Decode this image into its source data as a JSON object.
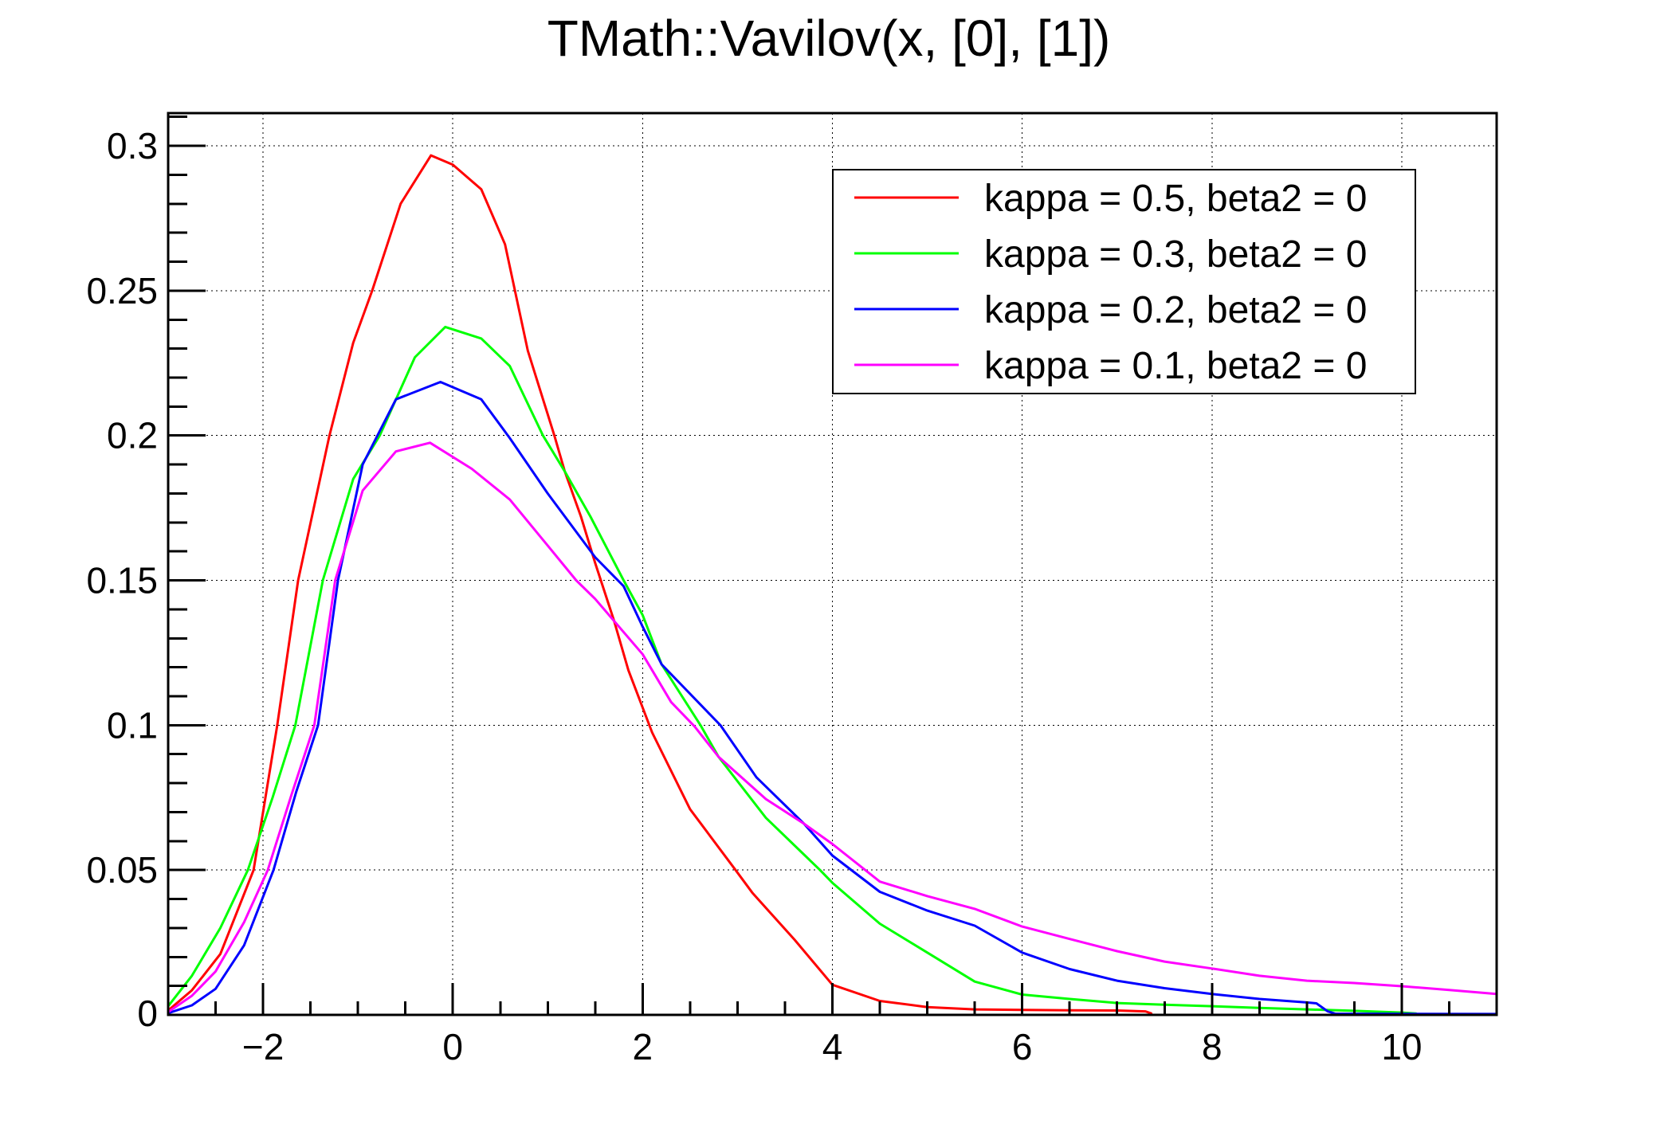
{
  "chart_data": {
    "type": "line",
    "title": "TMath::Vavilov(x, [0], [1])",
    "xlabel": "",
    "ylabel": "",
    "x_axis": {
      "min": -3,
      "max": 11,
      "major_ticks": [
        -2,
        0,
        2,
        4,
        6,
        8,
        10
      ],
      "tick_labels": [
        "−2",
        "0",
        "2",
        "4",
        "6",
        "8",
        "10"
      ],
      "minor_step": 0.5
    },
    "y_axis": {
      "min": 0,
      "max": 0.3113,
      "major_ticks": [
        0,
        0.05,
        0.1,
        0.15,
        0.2,
        0.25,
        0.3
      ],
      "tick_labels": [
        "0",
        "0.05",
        "0.1",
        "0.15",
        "0.2",
        "0.25",
        "0.3"
      ],
      "minor_step": 0.01
    },
    "grid": true,
    "legend": {
      "position": "top-right",
      "entries": [
        {
          "label": "kappa = 0.5, beta2 = 0",
          "color": "#ff0000"
        },
        {
          "label": "kappa = 0.3, beta2 = 0",
          "color": "#00ff00"
        },
        {
          "label": "kappa = 0.2, beta2 = 0",
          "color": "#0000ff"
        },
        {
          "label": "kappa = 0.1, beta2 = 0",
          "color": "#ff00ff"
        }
      ]
    },
    "series": [
      {
        "name": "kappa = 0.5, beta2 = 0",
        "color": "#ff0000",
        "points": [
          [
            -3,
            0.0015
          ],
          [
            -2.75,
            0.0085
          ],
          [
            -2.45,
            0.021
          ],
          [
            -2.1,
            0.05
          ],
          [
            -1.85,
            0.1
          ],
          [
            -1.63,
            0.15
          ],
          [
            -1.3,
            0.2
          ],
          [
            -1.05,
            0.232
          ],
          [
            -0.85,
            0.25
          ],
          [
            -0.55,
            0.28
          ],
          [
            -0.23,
            0.2967
          ],
          [
            0,
            0.2935
          ],
          [
            0.3,
            0.285
          ],
          [
            0.55,
            0.266
          ],
          [
            0.79,
            0.2293
          ],
          [
            1.07,
            0.2
          ],
          [
            1.18,
            0.1876
          ],
          [
            1.35,
            0.172
          ],
          [
            1.5,
            0.156
          ],
          [
            1.7,
            0.136
          ],
          [
            1.85,
            0.119
          ],
          [
            2.1,
            0.0975
          ],
          [
            2.5,
            0.071
          ],
          [
            2.98,
            0.05
          ],
          [
            3.16,
            0.042
          ],
          [
            3.6,
            0.026
          ],
          [
            4,
            0.0104
          ],
          [
            4.5,
            0.0048
          ],
          [
            5,
            0.0027
          ],
          [
            5.5,
            0.0019
          ],
          [
            6,
            0.0017
          ],
          [
            6.5,
            0.0016
          ],
          [
            7,
            0.0015
          ],
          [
            7.3,
            0.0012
          ],
          [
            7.36,
            0.0005
          ]
        ]
      },
      {
        "name": "kappa = 0.3, beta2 = 0",
        "color": "#00ff00",
        "points": [
          [
            -3,
            0.003
          ],
          [
            -2.75,
            0.0135
          ],
          [
            -2.45,
            0.03
          ],
          [
            -2.16,
            0.05
          ],
          [
            -1.9,
            0.075
          ],
          [
            -1.66,
            0.1
          ],
          [
            -1.37,
            0.15
          ],
          [
            -1.05,
            0.185
          ],
          [
            -0.77,
            0.2
          ],
          [
            -0.4,
            0.227
          ],
          [
            -0.08,
            0.2375
          ],
          [
            0.3,
            0.2335
          ],
          [
            0.6,
            0.224
          ],
          [
            0.95,
            0.2
          ],
          [
            1.18,
            0.1876
          ],
          [
            1.45,
            0.172
          ],
          [
            1.8,
            0.15
          ],
          [
            2,
            0.138
          ],
          [
            2.2,
            0.121
          ],
          [
            2.61,
            0.1
          ],
          [
            2.8,
            0.0891
          ],
          [
            3.3,
            0.068
          ],
          [
            3.87,
            0.05
          ],
          [
            4,
            0.0456
          ],
          [
            4.5,
            0.0315
          ],
          [
            5,
            0.0215
          ],
          [
            5.5,
            0.0115
          ],
          [
            6,
            0.007
          ],
          [
            6.5,
            0.0055
          ],
          [
            7,
            0.0041
          ],
          [
            7.5,
            0.0035
          ],
          [
            8,
            0.003
          ],
          [
            8.5,
            0.0024
          ],
          [
            9,
            0.0019
          ],
          [
            9.5,
            0.0014
          ],
          [
            10,
            0.0008
          ],
          [
            10.15,
            0.0005
          ]
        ]
      },
      {
        "name": "kappa = 0.2, beta2 = 0",
        "color": "#0000ff",
        "points": [
          [
            -3,
            0.0006
          ],
          [
            -2.75,
            0.0033
          ],
          [
            -2.5,
            0.009
          ],
          [
            -2.2,
            0.024
          ],
          [
            -1.89,
            0.05
          ],
          [
            -1.65,
            0.077
          ],
          [
            -1.42,
            0.1
          ],
          [
            -1.21,
            0.15
          ],
          [
            -0.95,
            0.19
          ],
          [
            -0.6,
            0.2125
          ],
          [
            -0.13,
            0.2185
          ],
          [
            0.3,
            0.2125
          ],
          [
            0.6,
            0.1991
          ],
          [
            1,
            0.18
          ],
          [
            1.5,
            0.158
          ],
          [
            1.8,
            0.148
          ],
          [
            2,
            0.134
          ],
          [
            2.2,
            0.121
          ],
          [
            2.82,
            0.1
          ],
          [
            3.2,
            0.082
          ],
          [
            3.7,
            0.066
          ],
          [
            4,
            0.055
          ],
          [
            4.5,
            0.0425
          ],
          [
            5,
            0.036
          ],
          [
            5.5,
            0.0308
          ],
          [
            6,
            0.0215
          ],
          [
            6.5,
            0.0158
          ],
          [
            7,
            0.0118
          ],
          [
            7.5,
            0.0092
          ],
          [
            8,
            0.0072
          ],
          [
            8.5,
            0.0055
          ],
          [
            9,
            0.0043
          ],
          [
            9.1,
            0.004
          ],
          [
            9.22,
            0.0012
          ],
          [
            9.3,
            0.0004
          ],
          [
            11,
            0.0003
          ]
        ]
      },
      {
        "name": "kappa = 0.1, beta2 = 0",
        "color": "#ff00ff",
        "points": [
          [
            -3,
            0.001
          ],
          [
            -2.75,
            0.0066
          ],
          [
            -2.5,
            0.015
          ],
          [
            -2.2,
            0.032
          ],
          [
            -1.95,
            0.05
          ],
          [
            -1.7,
            0.076
          ],
          [
            -1.46,
            0.1
          ],
          [
            -1.24,
            0.15
          ],
          [
            -0.95,
            0.181
          ],
          [
            -0.6,
            0.1945
          ],
          [
            -0.24,
            0.1975
          ],
          [
            0.2,
            0.1885
          ],
          [
            0.6,
            0.1779
          ],
          [
            1,
            0.162
          ],
          [
            1.3,
            0.15
          ],
          [
            1.5,
            0.1436
          ],
          [
            2,
            0.1245
          ],
          [
            2.3,
            0.108
          ],
          [
            2.55,
            0.0995
          ],
          [
            2.8,
            0.0891
          ],
          [
            3.3,
            0.0745
          ],
          [
            3.7,
            0.066
          ],
          [
            4,
            0.059
          ],
          [
            4.5,
            0.046
          ],
          [
            5,
            0.041
          ],
          [
            5.5,
            0.0366
          ],
          [
            6,
            0.0305
          ],
          [
            6.5,
            0.0262
          ],
          [
            7,
            0.022
          ],
          [
            7.5,
            0.0184
          ],
          [
            8,
            0.016
          ],
          [
            8.5,
            0.0135
          ],
          [
            9,
            0.0118
          ],
          [
            9.5,
            0.011
          ],
          [
            10,
            0.0099
          ],
          [
            10.5,
            0.0086
          ],
          [
            11,
            0.0072
          ]
        ]
      }
    ]
  }
}
